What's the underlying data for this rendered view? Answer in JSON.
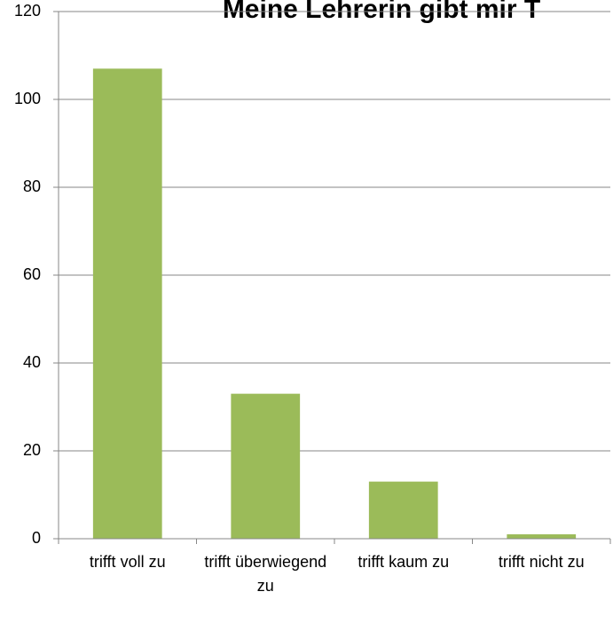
{
  "chart_data": {
    "type": "bar",
    "title": "Meine Lehrerin gibt mir T",
    "categories": [
      "trifft voll zu",
      "trifft überwiegend zu",
      "trifft kaum zu",
      "trifft nicht zu"
    ],
    "values": [
      107,
      33,
      13,
      1
    ],
    "color": "#9bbb59",
    "ylim": [
      0,
      120
    ],
    "yticks": [
      0,
      20,
      40,
      60,
      80,
      100,
      120
    ],
    "grid": true
  }
}
